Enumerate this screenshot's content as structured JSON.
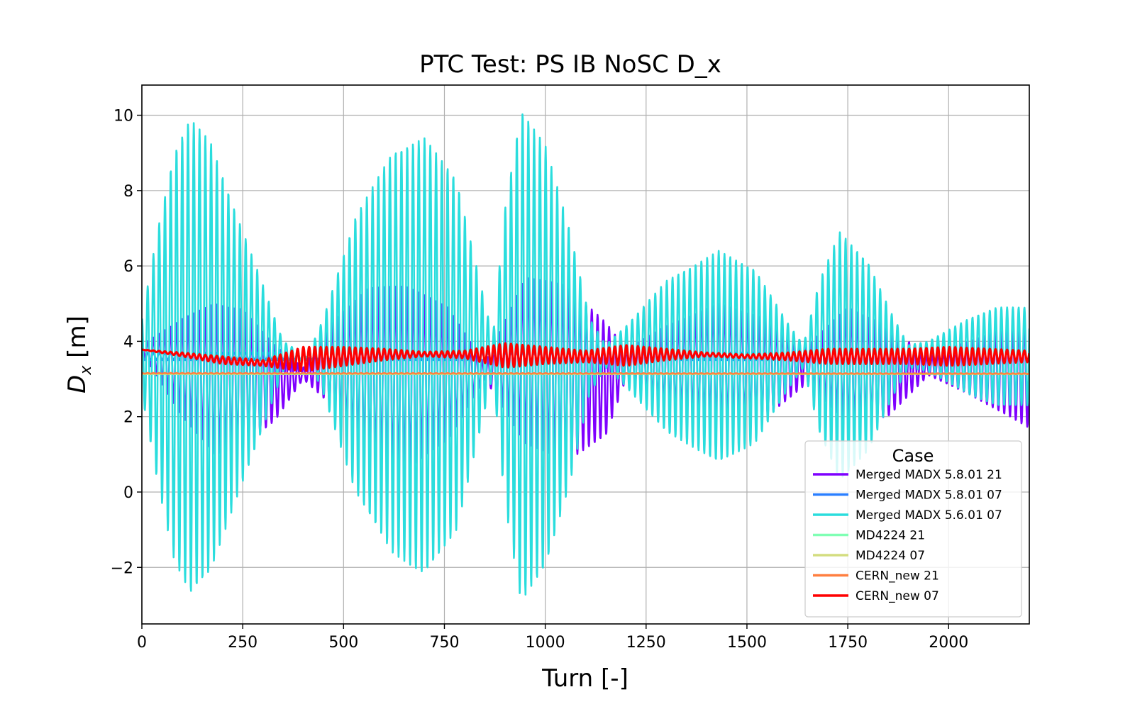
{
  "chart_data": {
    "type": "line",
    "title": "PTC Test: PS IB NoSC D_x",
    "xlabel": "Turn [-]",
    "ylabel_main": "D",
    "ylabel_sub": "x",
    "ylabel_unit": " [m]",
    "xlim": [
      0,
      2200
    ],
    "ylim": [
      -3.5,
      10.8
    ],
    "xticks": [
      0,
      250,
      500,
      750,
      1000,
      1250,
      1500,
      1750,
      2000
    ],
    "xtick_labels": [
      "0",
      "250",
      "500",
      "750",
      "1000",
      "1250",
      "1500",
      "1750",
      "2000"
    ],
    "yticks": [
      -2,
      0,
      2,
      4,
      6,
      8,
      10
    ],
    "ytick_labels": [
      "−2",
      "0",
      "2",
      "4",
      "6",
      "8",
      "10"
    ],
    "grid": true,
    "legend": {
      "title": "Case",
      "placement": "lower-right"
    },
    "oscillation_period_turns": 14.3,
    "series": [
      {
        "name": "Merged MADX 5.8.01 21",
        "color": "#7f00ff",
        "center": [
          [
            0,
            3.8
          ],
          [
            250,
            3.35
          ],
          [
            400,
            3.4
          ],
          [
            600,
            3.55
          ],
          [
            750,
            3.6
          ],
          [
            1000,
            3.55
          ],
          [
            1250,
            3.4
          ],
          [
            1500,
            3.45
          ],
          [
            1750,
            3.5
          ],
          [
            2000,
            3.35
          ],
          [
            2200,
            3.3
          ]
        ],
        "envelope_upper": [
          [
            0,
            3.9
          ],
          [
            100,
            4.6
          ],
          [
            180,
            5.0
          ],
          [
            250,
            4.85
          ],
          [
            330,
            3.9
          ],
          [
            400,
            3.3
          ],
          [
            470,
            4.5
          ],
          [
            560,
            5.4
          ],
          [
            650,
            5.5
          ],
          [
            760,
            4.9
          ],
          [
            850,
            3.4
          ],
          [
            950,
            5.7
          ],
          [
            1050,
            5.5
          ],
          [
            1150,
            4.5
          ],
          [
            1200,
            3.8
          ],
          [
            1300,
            4.4
          ],
          [
            1430,
            5.0
          ],
          [
            1550,
            4.6
          ],
          [
            1650,
            3.9
          ],
          [
            1750,
            4.9
          ],
          [
            1850,
            4.4
          ],
          [
            1950,
            3.6
          ],
          [
            2050,
            4.0
          ],
          [
            2200,
            4.6
          ]
        ],
        "envelope_lower": [
          [
            0,
            3.7
          ],
          [
            100,
            2.0
          ],
          [
            180,
            1.0
          ],
          [
            250,
            1.2
          ],
          [
            330,
            1.9
          ],
          [
            400,
            3.0
          ],
          [
            470,
            2.3
          ],
          [
            560,
            0.9
          ],
          [
            650,
            0.55
          ],
          [
            760,
            1.4
          ],
          [
            850,
            3.0
          ],
          [
            950,
            1.3
          ],
          [
            1050,
            0.8
          ],
          [
            1150,
            1.5
          ],
          [
            1200,
            3.0
          ],
          [
            1300,
            2.3
          ],
          [
            1430,
            1.8
          ],
          [
            1550,
            2.0
          ],
          [
            1650,
            2.9
          ],
          [
            1750,
            1.8
          ],
          [
            1850,
            2.0
          ],
          [
            1950,
            3.1
          ],
          [
            2050,
            2.6
          ],
          [
            2200,
            1.7
          ]
        ]
      },
      {
        "name": "Merged MADX 5.8.01 07",
        "color": "#2a7fff",
        "center": [
          [
            0,
            3.6
          ],
          [
            2200,
            3.6
          ]
        ],
        "envelope_upper": [
          [
            0,
            3.7
          ],
          [
            2200,
            3.7
          ]
        ],
        "envelope_lower": [
          [
            0,
            3.5
          ],
          [
            2200,
            3.5
          ]
        ]
      },
      {
        "name": "Merged MADX 5.6.01 07",
        "color": "#2adddd",
        "center": [
          [
            0,
            3.6
          ],
          [
            250,
            3.5
          ],
          [
            500,
            3.6
          ],
          [
            750,
            3.6
          ],
          [
            1000,
            3.6
          ],
          [
            1250,
            3.6
          ],
          [
            1500,
            3.6
          ],
          [
            1750,
            3.6
          ],
          [
            2000,
            3.6
          ],
          [
            2200,
            3.6
          ]
        ],
        "envelope_upper": [
          [
            0,
            4.6
          ],
          [
            40,
            7.0
          ],
          [
            80,
            9.0
          ],
          [
            120,
            9.9
          ],
          [
            170,
            9.3
          ],
          [
            230,
            7.5
          ],
          [
            300,
            5.5
          ],
          [
            350,
            4.0
          ],
          [
            410,
            3.6
          ],
          [
            450,
            4.6
          ],
          [
            530,
            7.3
          ],
          [
            620,
            9.0
          ],
          [
            700,
            9.4
          ],
          [
            780,
            8.3
          ],
          [
            840,
            5.5
          ],
          [
            870,
            4.1
          ],
          [
            900,
            7.5
          ],
          [
            940,
            10.15
          ],
          [
            1000,
            9.2
          ],
          [
            1060,
            7.0
          ],
          [
            1110,
            4.6
          ],
          [
            1150,
            3.9
          ],
          [
            1200,
            4.4
          ],
          [
            1300,
            5.6
          ],
          [
            1430,
            6.4
          ],
          [
            1520,
            5.9
          ],
          [
            1600,
            4.5
          ],
          [
            1640,
            3.9
          ],
          [
            1680,
            5.6
          ],
          [
            1730,
            6.9
          ],
          [
            1800,
            6.1
          ],
          [
            1860,
            4.7
          ],
          [
            1900,
            3.9
          ],
          [
            1950,
            4.0
          ],
          [
            2050,
            4.6
          ],
          [
            2120,
            4.9
          ],
          [
            2200,
            4.9
          ]
        ],
        "envelope_lower": [
          [
            0,
            2.6
          ],
          [
            40,
            0.2
          ],
          [
            80,
            -1.8
          ],
          [
            120,
            -2.7
          ],
          [
            170,
            -2.1
          ],
          [
            230,
            -0.3
          ],
          [
            300,
            1.7
          ],
          [
            350,
            3.2
          ],
          [
            410,
            3.6
          ],
          [
            450,
            2.6
          ],
          [
            530,
            0.0
          ],
          [
            620,
            -1.6
          ],
          [
            700,
            -2.2
          ],
          [
            780,
            -1.0
          ],
          [
            840,
            1.7
          ],
          [
            870,
            3.1
          ],
          [
            900,
            -0.3
          ],
          [
            940,
            -2.9
          ],
          [
            1000,
            -2.0
          ],
          [
            1060,
            0.2
          ],
          [
            1110,
            2.6
          ],
          [
            1150,
            3.3
          ],
          [
            1200,
            2.8
          ],
          [
            1300,
            1.6
          ],
          [
            1430,
            0.8
          ],
          [
            1520,
            1.3
          ],
          [
            1600,
            2.7
          ],
          [
            1640,
            3.3
          ],
          [
            1680,
            1.6
          ],
          [
            1730,
            0.3
          ],
          [
            1800,
            1.1
          ],
          [
            1860,
            2.5
          ],
          [
            1900,
            3.3
          ],
          [
            1950,
            3.2
          ],
          [
            2050,
            2.6
          ],
          [
            2120,
            2.3
          ],
          [
            2200,
            2.3
          ]
        ]
      },
      {
        "name": "MD4224 21",
        "color": "#80ffb4",
        "center": [
          [
            0,
            3.13
          ],
          [
            2200,
            3.13
          ]
        ],
        "envelope_upper": [
          [
            0,
            3.13
          ],
          [
            2200,
            3.13
          ]
        ],
        "envelope_lower": [
          [
            0,
            3.13
          ],
          [
            2200,
            3.13
          ]
        ]
      },
      {
        "name": "MD4224 07",
        "color": "#d4dd80",
        "center": [
          [
            0,
            3.14
          ],
          [
            2200,
            3.14
          ]
        ],
        "envelope_upper": [
          [
            0,
            3.14
          ],
          [
            2200,
            3.14
          ]
        ],
        "envelope_lower": [
          [
            0,
            3.14
          ],
          [
            2200,
            3.14
          ]
        ]
      },
      {
        "name": "CERN_new 21",
        "color": "#ff7f40",
        "center": [
          [
            0,
            3.15
          ],
          [
            250,
            3.12
          ],
          [
            500,
            3.12
          ],
          [
            1000,
            3.13
          ],
          [
            1500,
            3.13
          ],
          [
            2200,
            3.14
          ]
        ],
        "envelope_upper": [
          [
            0,
            3.16
          ],
          [
            2200,
            3.15
          ]
        ],
        "envelope_lower": [
          [
            0,
            3.14
          ],
          [
            2200,
            3.13
          ]
        ]
      },
      {
        "name": "CERN_new 07",
        "color": "#ff0000",
        "center": [
          [
            0,
            3.78
          ],
          [
            100,
            3.65
          ],
          [
            200,
            3.5
          ],
          [
            300,
            3.42
          ],
          [
            400,
            3.55
          ],
          [
            500,
            3.6
          ],
          [
            600,
            3.65
          ],
          [
            700,
            3.65
          ],
          [
            800,
            3.65
          ],
          [
            900,
            3.7
          ],
          [
            1000,
            3.65
          ],
          [
            1100,
            3.6
          ],
          [
            1200,
            3.6
          ],
          [
            1300,
            3.65
          ],
          [
            1400,
            3.65
          ],
          [
            1500,
            3.6
          ],
          [
            1600,
            3.62
          ],
          [
            1700,
            3.6
          ],
          [
            1800,
            3.6
          ],
          [
            1900,
            3.6
          ],
          [
            2000,
            3.6
          ],
          [
            2100,
            3.6
          ],
          [
            2200,
            3.6
          ]
        ],
        "envelope_upper": [
          [
            0,
            3.78
          ],
          [
            100,
            3.7
          ],
          [
            200,
            3.6
          ],
          [
            300,
            3.5
          ],
          [
            400,
            3.85
          ],
          [
            500,
            3.85
          ],
          [
            600,
            3.8
          ],
          [
            700,
            3.72
          ],
          [
            800,
            3.75
          ],
          [
            900,
            3.95
          ],
          [
            1000,
            3.85
          ],
          [
            1100,
            3.75
          ],
          [
            1200,
            3.9
          ],
          [
            1300,
            3.8
          ],
          [
            1400,
            3.7
          ],
          [
            1500,
            3.65
          ],
          [
            1600,
            3.7
          ],
          [
            1700,
            3.8
          ],
          [
            1800,
            3.8
          ],
          [
            1900,
            3.8
          ],
          [
            2000,
            3.85
          ],
          [
            2100,
            3.8
          ],
          [
            2200,
            3.75
          ]
        ],
        "envelope_lower": [
          [
            0,
            3.78
          ],
          [
            100,
            3.6
          ],
          [
            200,
            3.4
          ],
          [
            300,
            3.35
          ],
          [
            400,
            3.2
          ],
          [
            500,
            3.35
          ],
          [
            600,
            3.5
          ],
          [
            700,
            3.6
          ],
          [
            800,
            3.55
          ],
          [
            900,
            3.3
          ],
          [
            1000,
            3.4
          ],
          [
            1100,
            3.45
          ],
          [
            1200,
            3.35
          ],
          [
            1300,
            3.5
          ],
          [
            1400,
            3.6
          ],
          [
            1500,
            3.55
          ],
          [
            1600,
            3.5
          ],
          [
            1700,
            3.4
          ],
          [
            1800,
            3.4
          ],
          [
            1900,
            3.4
          ],
          [
            2000,
            3.35
          ],
          [
            2100,
            3.4
          ],
          [
            2200,
            3.45
          ]
        ]
      }
    ],
    "draw_order": [
      0,
      1,
      2,
      3,
      4,
      5,
      6
    ]
  }
}
